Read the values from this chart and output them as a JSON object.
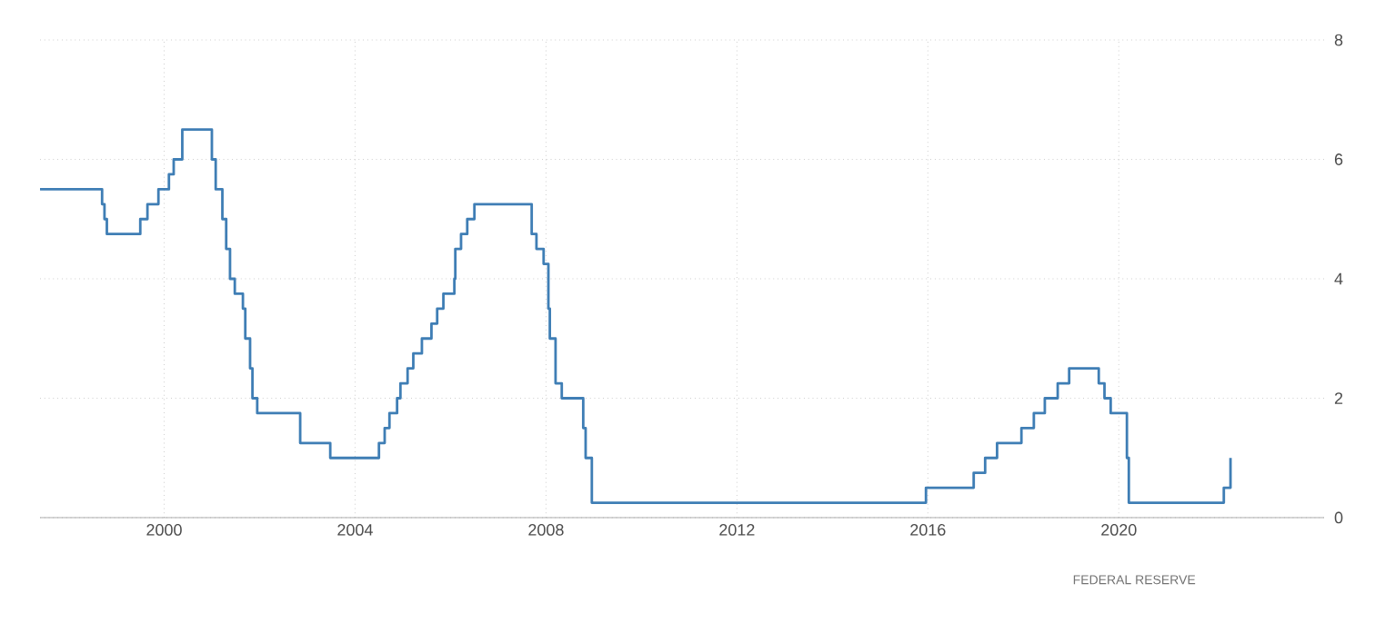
{
  "chart_data": {
    "type": "step",
    "x": [
      1997.4,
      1998.7,
      1998.75,
      1998.8,
      1998.88,
      1999.5,
      1999.65,
      1999.88,
      2000.1,
      2000.2,
      2000.38,
      2001.0,
      2001.08,
      2001.22,
      2001.3,
      2001.38,
      2001.48,
      2001.65,
      2001.7,
      2001.8,
      2001.85,
      2001.95,
      2002.85,
      2003.48,
      2004.5,
      2004.62,
      2004.72,
      2004.88,
      2004.95,
      2005.1,
      2005.22,
      2005.4,
      2005.6,
      2005.72,
      2005.85,
      2006.08,
      2006.1,
      2006.22,
      2006.35,
      2006.5,
      2007.7,
      2007.8,
      2007.95,
      2008.05,
      2008.08,
      2008.2,
      2008.33,
      2008.78,
      2008.83,
      2008.96,
      2015.96,
      2016.96,
      2017.2,
      2017.45,
      2017.96,
      2018.22,
      2018.45,
      2018.72,
      2018.96,
      2019.58,
      2019.7,
      2019.83,
      2020.17,
      2020.21,
      2022.2,
      2022.34
    ],
    "series": [
      {
        "color": "#3f7eb5",
        "values": [
          5.5,
          5.25,
          5.0,
          4.75,
          4.75,
          5.0,
          5.25,
          5.5,
          5.75,
          6.0,
          6.5,
          6.0,
          5.5,
          5.0,
          4.5,
          4.0,
          3.75,
          3.5,
          3.0,
          2.5,
          2.0,
          1.75,
          1.25,
          1.0,
          1.25,
          1.5,
          1.75,
          2.0,
          2.25,
          2.5,
          2.75,
          3.0,
          3.25,
          3.5,
          3.75,
          4.0,
          4.5,
          4.75,
          5.0,
          5.25,
          4.75,
          4.5,
          4.25,
          3.5,
          3.0,
          2.25,
          2.0,
          1.5,
          1.0,
          0.25,
          0.5,
          0.75,
          1.0,
          1.25,
          1.5,
          1.75,
          2.0,
          2.25,
          2.5,
          2.25,
          2.0,
          1.75,
          1.0,
          0.25,
          0.5,
          1.0
        ]
      }
    ],
    "xlim": [
      1997.4,
      2024.3
    ],
    "ylim": [
      0,
      8
    ],
    "xticks": [
      2000,
      2004,
      2008,
      2012,
      2016,
      2020
    ],
    "yticks": [
      0,
      2,
      4,
      6,
      8
    ],
    "grid": true,
    "annotations": [
      "FEDERAL RESERVE"
    ]
  }
}
